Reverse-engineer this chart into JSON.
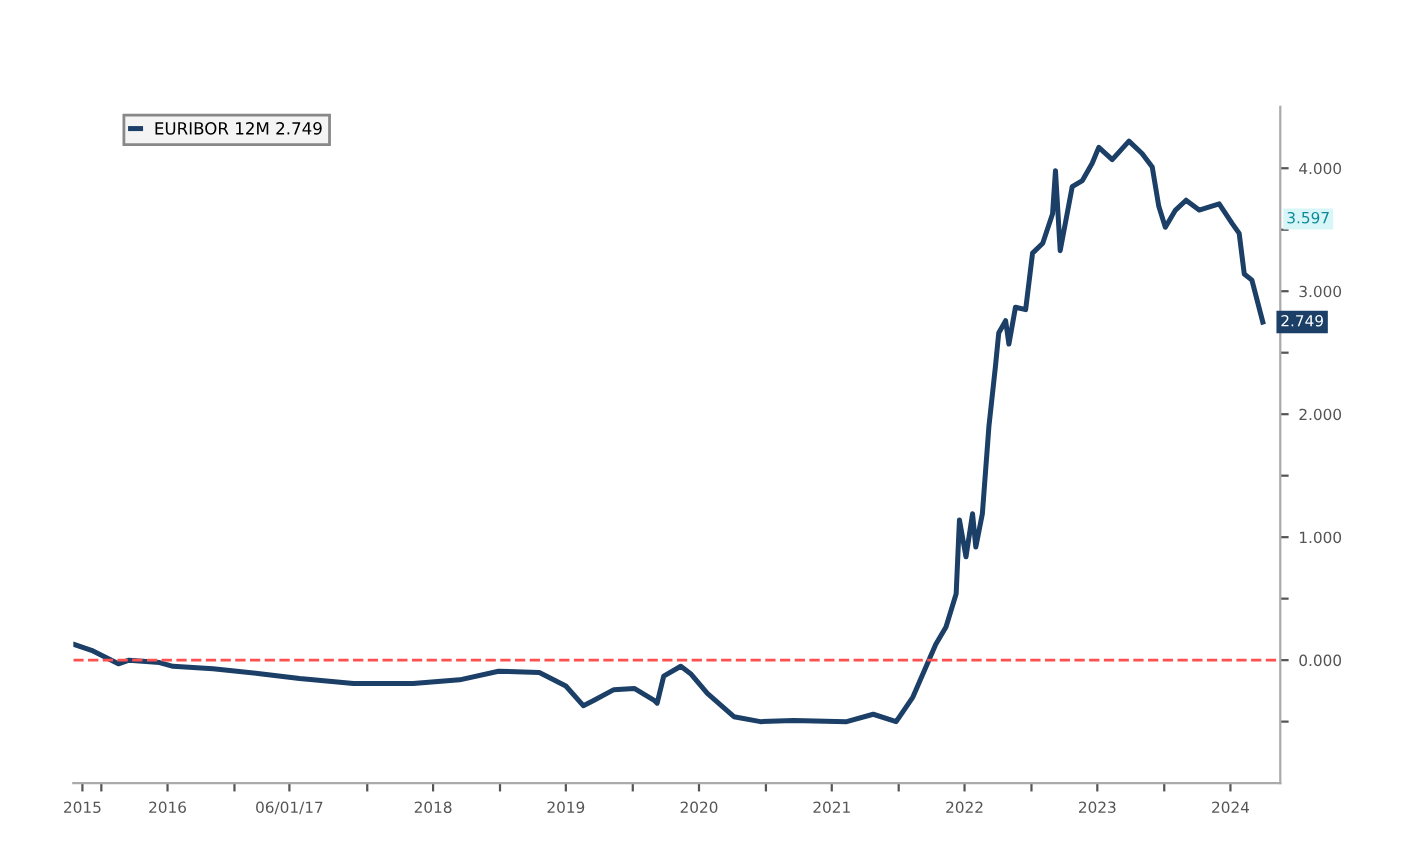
{
  "chart_data": {
    "type": "line",
    "x": [
      "2015-10-16",
      "2015-12-05",
      "2016-02-17",
      "2016-03-17",
      "2016-06-09",
      "2016-07-16",
      "2016-11-03",
      "2017-03-12",
      "2017-06-29",
      "2017-11-24",
      "2018-05-07",
      "2018-09-12",
      "2018-12-28",
      "2019-04-19",
      "2019-07-01",
      "2019-08-18",
      "2019-09-14",
      "2019-11-10",
      "2020-01-05",
      "2020-03-01",
      "2020-03-08",
      "2020-03-26",
      "2020-05-12",
      "2020-06-08",
      "2020-07-24",
      "2020-10-05",
      "2020-12-17",
      "2021-03-18",
      "2021-08-11",
      "2021-10-23",
      "2021-12-25",
      "2022-02-09",
      "2022-04-13",
      "2022-05-11",
      "2022-06-08",
      "2022-06-17",
      "2022-07-05",
      "2022-07-23",
      "2022-08-01",
      "2022-08-19",
      "2022-09-06",
      "2022-09-24",
      "2022-10-03",
      "2022-10-22",
      "2022-10-31",
      "2022-11-18",
      "2022-12-16",
      "2023-01-04",
      "2023-02-01",
      "2023-02-28",
      "2023-03-08",
      "2023-03-21",
      "2023-04-23",
      "2023-05-21",
      "2023-06-17",
      "2023-07-05",
      "2023-08-11",
      "2023-09-26",
      "2023-11-01",
      "2023-11-29",
      "2023-12-17",
      "2024-01-04",
      "2024-02-01",
      "2024-03-01",
      "2024-04-06",
      "2024-05-31",
      "2024-07-06",
      "2024-07-25",
      "2024-08-08",
      "2024-08-29",
      "2024-09-28"
    ],
    "series": [
      {
        "name": "EURIBOR 12M 2.749",
        "color": "#1b3f66",
        "values": [
          0.13,
          0.08,
          -0.03,
          0.0,
          -0.02,
          -0.05,
          -0.07,
          -0.11,
          -0.15,
          -0.19,
          -0.19,
          -0.16,
          -0.09,
          -0.1,
          -0.21,
          -0.37,
          -0.33,
          -0.24,
          -0.23,
          -0.33,
          -0.35,
          -0.13,
          -0.05,
          -0.11,
          -0.27,
          -0.46,
          -0.5,
          -0.49,
          -0.5,
          -0.44,
          -0.5,
          -0.3,
          0.13,
          0.27,
          0.54,
          1.14,
          0.84,
          1.19,
          0.92,
          1.19,
          1.9,
          2.39,
          2.66,
          2.76,
          2.57,
          2.87,
          2.85,
          3.31,
          3.39,
          3.63,
          3.98,
          3.33,
          3.85,
          3.9,
          4.04,
          4.17,
          4.07,
          4.22,
          4.12,
          4.01,
          3.69,
          3.52,
          3.66,
          3.74,
          3.66,
          3.71,
          3.55,
          3.47,
          3.14,
          3.09,
          2.749
        ]
      }
    ],
    "xlim": [
      "2015-10-16",
      "2024-11-15"
    ],
    "xticks": [
      {
        "value": "2015-11-10",
        "label": "2015"
      },
      {
        "value": "2016-01-01",
        "label": null
      },
      {
        "value": "2016-07-01",
        "label": "2016"
      },
      {
        "value": "2017-01-01",
        "label": null
      },
      {
        "value": "2017-06-01",
        "label": "06/01/17"
      },
      {
        "value": "2018-01-01",
        "label": null
      },
      {
        "value": "2018-07-01",
        "label": "2018"
      },
      {
        "value": "2019-01-01",
        "label": null
      },
      {
        "value": "2019-07-01",
        "label": "2019"
      },
      {
        "value": "2020-01-01",
        "label": null
      },
      {
        "value": "2020-07-01",
        "label": "2020"
      },
      {
        "value": "2021-01-01",
        "label": null
      },
      {
        "value": "2021-07-01",
        "label": "2021"
      },
      {
        "value": "2022-01-01",
        "label": null
      },
      {
        "value": "2022-07-01",
        "label": "2022"
      },
      {
        "value": "2023-01-01",
        "label": null
      },
      {
        "value": "2023-07-01",
        "label": "2023"
      },
      {
        "value": "2024-01-01",
        "label": null
      },
      {
        "value": "2024-07-01",
        "label": "2024"
      }
    ],
    "ylim": [
      -1,
      4.5
    ],
    "yticks": [
      {
        "value": -0.5,
        "label": null
      },
      {
        "value": 0,
        "label": "0.000"
      },
      {
        "value": 0.5,
        "label": null
      },
      {
        "value": 1,
        "label": "1.000"
      },
      {
        "value": 1.5,
        "label": null
      },
      {
        "value": 2,
        "label": "2.000"
      },
      {
        "value": 2.5,
        "label": null
      },
      {
        "value": 3,
        "label": "3.000"
      },
      {
        "value": 3.5,
        "label": null
      },
      {
        "value": 4,
        "label": "4.000"
      }
    ],
    "ref_lines": [
      {
        "axis": "y",
        "value": 0,
        "color": "#ff5050",
        "line_style": "dashed"
      }
    ],
    "annotations": [
      "3.597",
      {
        "text": "2.749",
        "x": "2024-09-28",
        "y": 2.749
      }
    ],
    "legend": "top left",
    "grid": false,
    "marker": "none",
    "line_style": "solid"
  }
}
